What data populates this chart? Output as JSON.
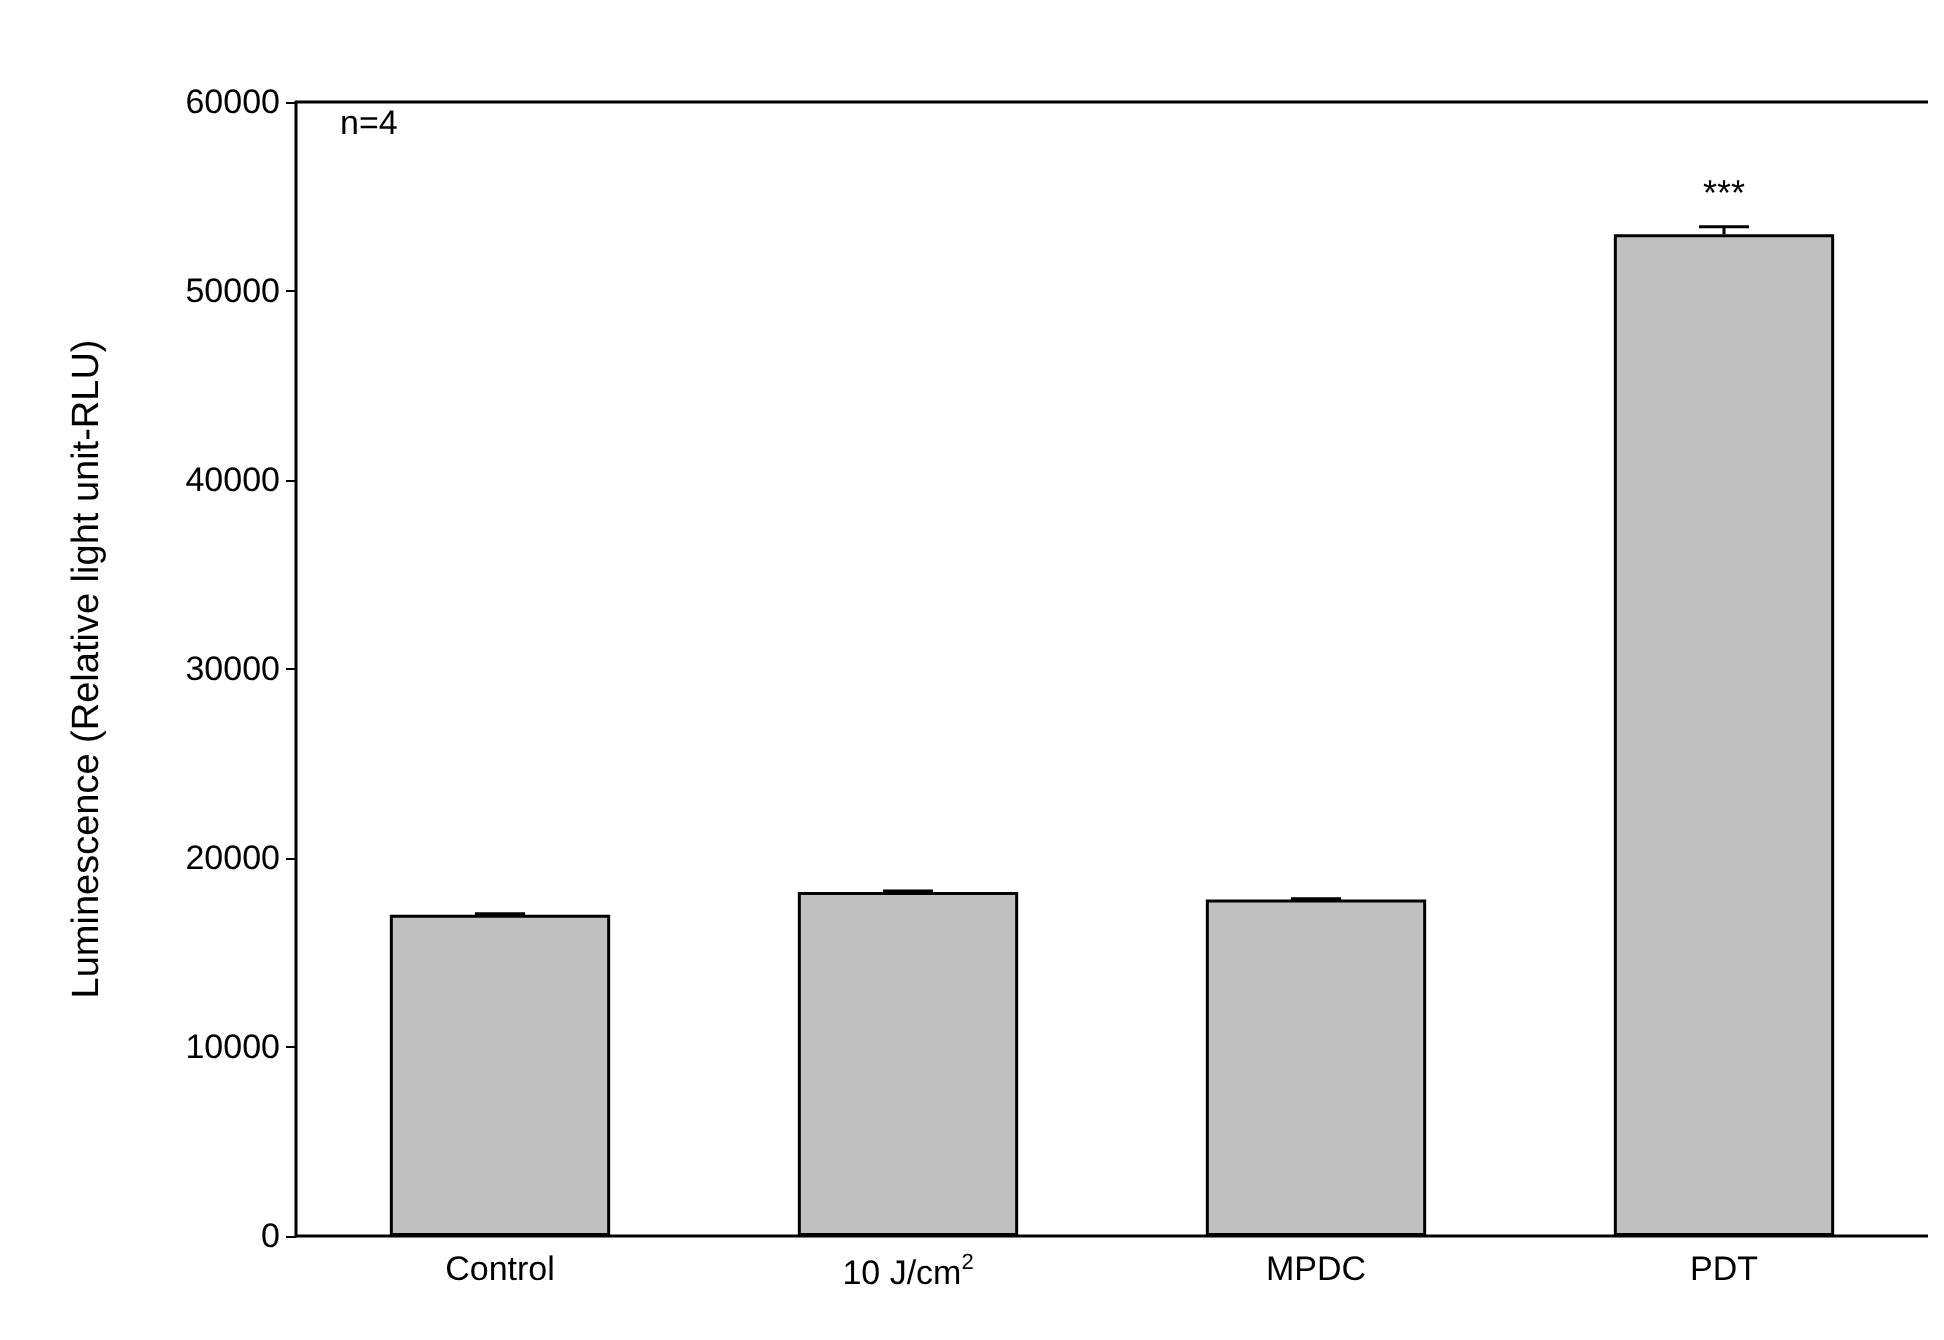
{
  "chart_data": {
    "type": "bar",
    "ylabel": "Luminescence (Relative light unit-RLU)",
    "categories": [
      "Control",
      "10 J/cm$^{2}$",
      "MPDC",
      "PDT"
    ],
    "values": [
      17000,
      18200,
      17800,
      53000
    ],
    "errors": [
      50,
      50,
      50,
      400
    ],
    "color": "#c0c0c0",
    "ylim": [
      0,
      60000
    ],
    "yticks": [
      0,
      10000,
      20000,
      30000,
      40000,
      50000,
      60000
    ],
    "grid": false,
    "annotations": [
      "n=4",
      "***"
    ]
  }
}
